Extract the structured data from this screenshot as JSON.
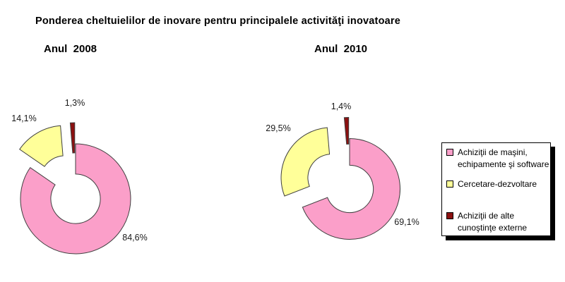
{
  "page": {
    "background": "#FFFFFF"
  },
  "title": "Ponderea cheltuielilor de inovare pentru principalele activităţi inovatoare",
  "legend": {
    "position": "right",
    "items": [
      {
        "color": "#FB9FC9",
        "lines": [
          "Achiziţii de maşini,",
          "echipamente şi software"
        ]
      },
      {
        "color": "#FFFF99",
        "lines": [
          "Cercetare-dezvoltare"
        ]
      },
      {
        "color": "#8B1111",
        "lines": [
          "Achiziţii de alte",
          "cunoştinţe externe"
        ]
      }
    ]
  },
  "chart_data": [
    {
      "type": "pie",
      "subtype": "exploded-doughnut",
      "id": "2008",
      "year_label": "Anul  2008",
      "start_angle_deg": 0,
      "direction": "clockwise",
      "hole_ratio": 0.45,
      "legend_position": "right",
      "categories": [
        "Achiziţii de maşini, echipamente şi software",
        "Cercetare-dezvoltare",
        "Achiziţii de alte cunoştinţe externe"
      ],
      "slices": [
        {
          "name": "Achiziţii de maşini, echipamente şi software",
          "value": 84.6,
          "label": "84,6%",
          "color": "#FB9FC9",
          "exploded": false
        },
        {
          "name": "Cercetare-dezvoltare",
          "value": 14.1,
          "label": "14,1%",
          "color": "#FFFF99",
          "exploded": true
        },
        {
          "name": "Achiziţii de alte cunoştinţe externe",
          "value": 1.3,
          "label": "1,3%",
          "color": "#8B1111",
          "exploded": true
        }
      ]
    },
    {
      "type": "pie",
      "subtype": "exploded-doughnut",
      "id": "2010",
      "year_label": "Anul  2010",
      "start_angle_deg": 0,
      "direction": "clockwise",
      "hole_ratio": 0.47,
      "legend_position": "right",
      "categories": [
        "Achiziţii de maşini, echipamente şi software",
        "Cercetare-dezvoltare",
        "Achiziţii de alte cunoştinţe externe"
      ],
      "slices": [
        {
          "name": "Achiziţii de maşini, echipamente şi software",
          "value": 69.1,
          "label": "69,1%",
          "color": "#FB9FC9",
          "exploded": false
        },
        {
          "name": "Cercetare-dezvoltare",
          "value": 29.5,
          "label": "29,5%",
          "color": "#FFFF99",
          "exploded": true
        },
        {
          "name": "Achiziţii de alte cunoştinţe externe",
          "value": 1.4,
          "label": "1,4%",
          "color": "#8B1111",
          "exploded": true
        }
      ]
    }
  ]
}
